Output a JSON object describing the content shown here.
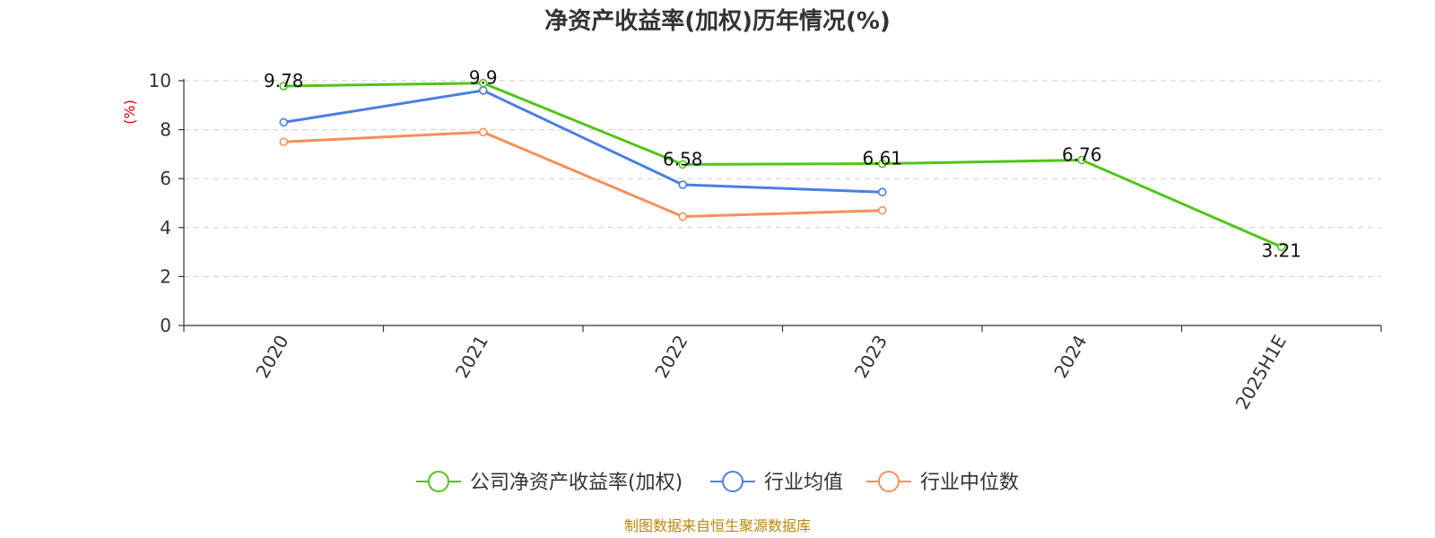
{
  "chart_data": {
    "type": "line",
    "title": "净资产收益率(加权)历年情况(%)",
    "ylabel": "(%)",
    "categories": [
      "2020",
      "2021",
      "2022",
      "2023",
      "2024",
      "2025H1E"
    ],
    "ylim": [
      0,
      10
    ],
    "yticks": [
      0,
      2,
      4,
      6,
      8,
      10
    ],
    "grid": true,
    "legend_position": "bottom",
    "series": [
      {
        "name": "公司净资产收益率(加权)",
        "color": "#52c41a",
        "values": [
          9.78,
          9.9,
          6.58,
          6.61,
          6.76,
          3.21
        ],
        "labels": [
          "9.78",
          "9.9",
          "6.58",
          "6.61",
          "6.76",
          "3.21"
        ]
      },
      {
        "name": "行业均值",
        "color": "#4a7fe0",
        "values": [
          8.3,
          9.6,
          5.75,
          5.45,
          null,
          null
        ]
      },
      {
        "name": "行业中位数",
        "color": "#f5905a",
        "values": [
          7.5,
          7.9,
          4.45,
          4.7,
          null,
          null
        ]
      }
    ]
  },
  "source": "制图数据来自恒生聚源数据库"
}
